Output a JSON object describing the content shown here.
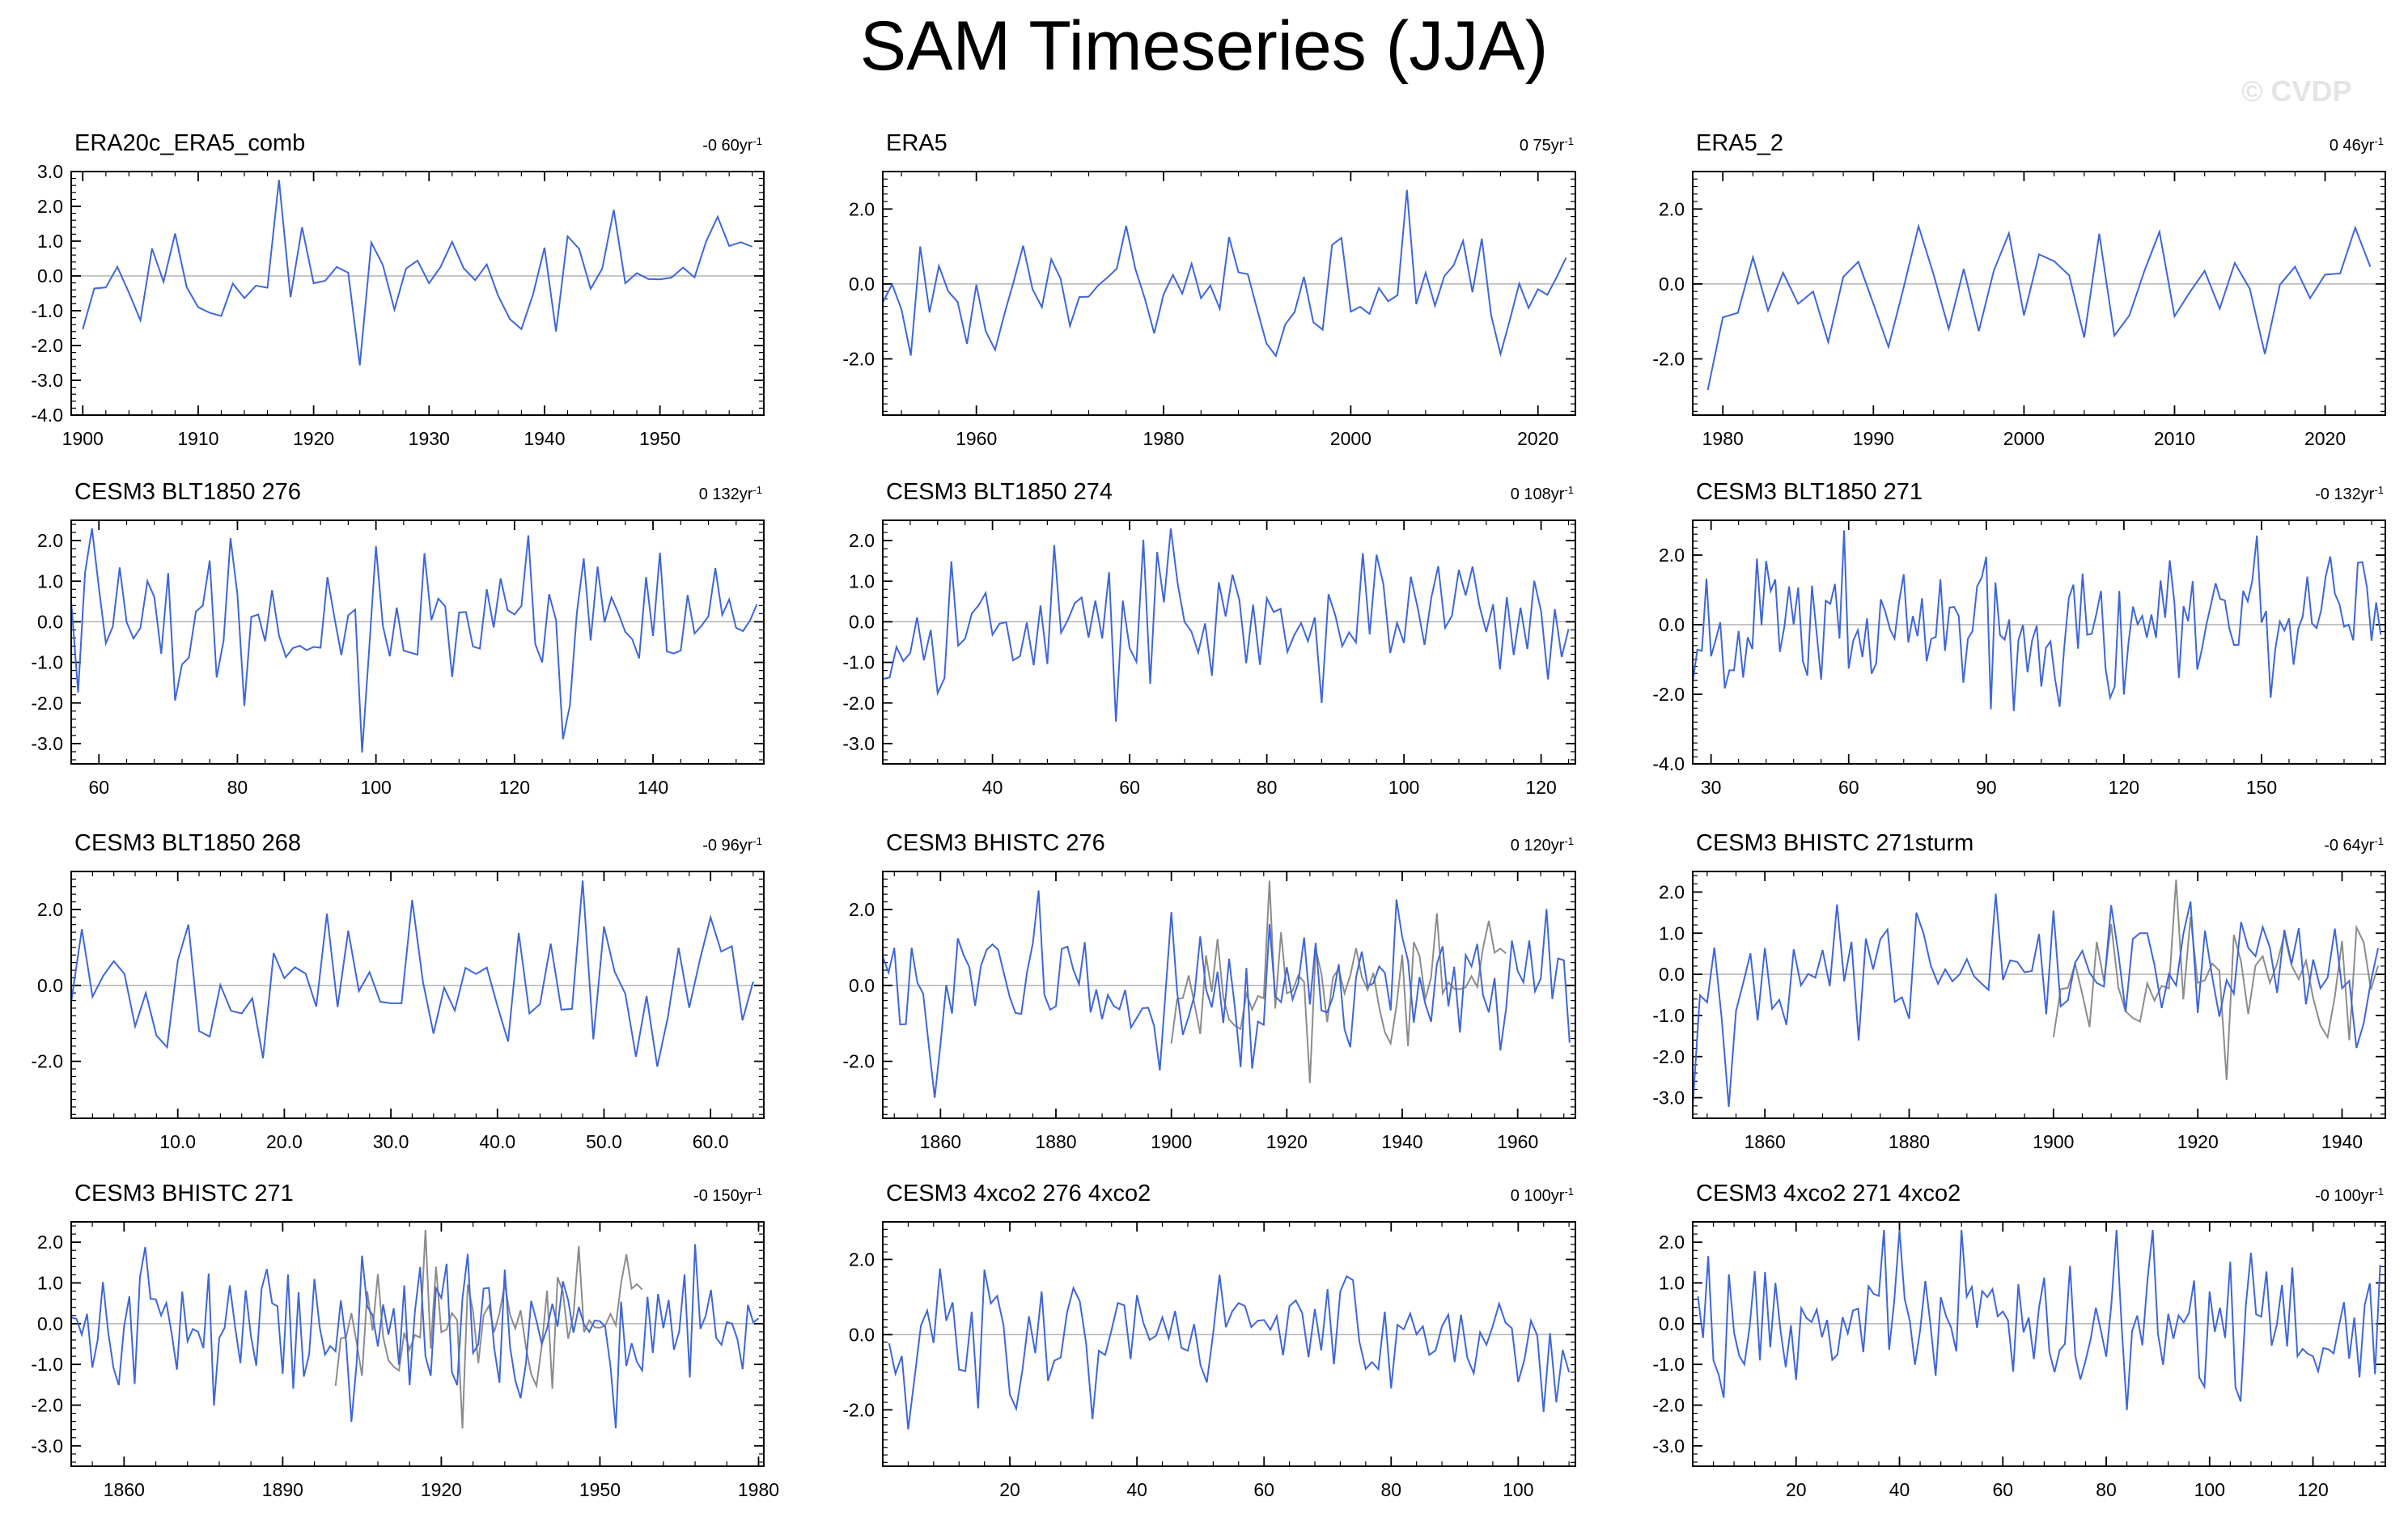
{
  "title": "SAM Timeseries (JJA)",
  "watermark": "© CVDP",
  "colors": {
    "series": "#3f66d9",
    "obs_overlay": "#8c8c8c",
    "zero_line": "#b4b4b4",
    "axis": "#000000"
  },
  "chart_data": [
    {
      "type": "line",
      "title": "ERA20c_ERA5_comb",
      "trend": "-0 60yr",
      "trend_unit": "-1",
      "xlim": [
        1899,
        1959
      ],
      "ylim": [
        -4,
        3
      ],
      "xticks": [
        1900,
        1910,
        1920,
        1930,
        1940,
        1950
      ],
      "xtick_labels": [
        "1900",
        "1910",
        "1920",
        "1930",
        "1940",
        "1950"
      ],
      "yticks": [
        3,
        2,
        1,
        0,
        -1,
        -2,
        -3,
        -4
      ],
      "ytick_labels": [
        "3.0",
        "2.0",
        "1.0",
        "0.0",
        "-1.0",
        "-2.0",
        "-3.0",
        "-4.0"
      ],
      "x_start": 1900,
      "x_step": 1,
      "n": 59,
      "seed": 11,
      "amp": 0.85,
      "overlay": false
    },
    {
      "type": "line",
      "title": "ERA5",
      "trend": "0 75yr",
      "trend_unit": "-1",
      "xlim": [
        1950,
        2024
      ],
      "ylim": [
        -3.5,
        3
      ],
      "xticks": [
        1960,
        1980,
        2000,
        2020
      ],
      "xtick_labels": [
        "1960",
        "1980",
        "2000",
        "2020"
      ],
      "yticks": [
        2,
        0,
        -2
      ],
      "ytick_labels": [
        "2.0",
        "0.0",
        "-2.0"
      ],
      "x_start": 1950,
      "x_step": 1,
      "n": 74,
      "seed": 23,
      "amp": 0.95,
      "overlay": false
    },
    {
      "type": "line",
      "title": "ERA5_2",
      "trend": "0 46yr",
      "trend_unit": "-1",
      "xlim": [
        1978,
        2024
      ],
      "ylim": [
        -3.5,
        3
      ],
      "xticks": [
        1980,
        1990,
        2000,
        2010,
        2020
      ],
      "xtick_labels": [
        "1980",
        "1990",
        "2000",
        "2010",
        "2020"
      ],
      "yticks": [
        2,
        0,
        -2
      ],
      "ytick_labels": [
        "2.0",
        "0.0",
        "-2.0"
      ],
      "x_start": 1979,
      "x_step": 1,
      "n": 45,
      "seed": 37,
      "amp": 0.95,
      "overlay": false
    },
    {
      "type": "line",
      "title": "CESM3 BLT1850 276",
      "trend": "0 132yr",
      "trend_unit": "-1",
      "xlim": [
        56,
        156
      ],
      "ylim": [
        -3.5,
        2.5
      ],
      "xticks": [
        60,
        80,
        100,
        120,
        140
      ],
      "xtick_labels": [
        "60",
        "80",
        "100",
        "120",
        "140"
      ],
      "yticks": [
        2,
        1,
        0,
        -1,
        -2,
        -3
      ],
      "ytick_labels": [
        "2.0",
        "1.0",
        "0.0",
        "-1.0",
        "-2.0",
        "-3.0"
      ],
      "x_start": 56,
      "x_step": 1,
      "n": 100,
      "seed": 41,
      "amp": 0.9,
      "overlay": false
    },
    {
      "type": "line",
      "title": "CESM3 BLT1850 274",
      "trend": "0 108yr",
      "trend_unit": "-1",
      "xlim": [
        24,
        125
      ],
      "ylim": [
        -3.5,
        2.5
      ],
      "xticks": [
        40,
        60,
        80,
        100,
        120
      ],
      "xtick_labels": [
        "40",
        "60",
        "80",
        "100",
        "120"
      ],
      "yticks": [
        2,
        1,
        0,
        -1,
        -2,
        -3
      ],
      "ytick_labels": [
        "2.0",
        "1.0",
        "0.0",
        "-1.0",
        "-2.0",
        "-3.0"
      ],
      "x_start": 24,
      "x_step": 1,
      "n": 101,
      "seed": 53,
      "amp": 0.9,
      "overlay": false
    },
    {
      "type": "line",
      "title": "CESM3 BLT1850 271",
      "trend": "-0 132yr",
      "trend_unit": "-1",
      "xlim": [
        26,
        177
      ],
      "ylim": [
        -4,
        3
      ],
      "xticks": [
        30,
        60,
        90,
        120,
        150
      ],
      "xtick_labels": [
        "30",
        "60",
        "90",
        "120",
        "150"
      ],
      "yticks": [
        2,
        0,
        -2,
        -4
      ],
      "ytick_labels": [
        "2.0",
        "0.0",
        "-2.0",
        "-4.0"
      ],
      "x_start": 26,
      "x_step": 1,
      "n": 151,
      "seed": 67,
      "amp": 0.95,
      "overlay": false
    },
    {
      "type": "line",
      "title": "CESM3 BLT1850 268",
      "trend": "-0 96yr",
      "trend_unit": "-1",
      "xlim": [
        0,
        65
      ],
      "ylim": [
        -3.5,
        3
      ],
      "xticks": [
        10,
        20,
        30,
        40,
        50,
        60
      ],
      "xtick_labels": [
        "10.0",
        "20.0",
        "30.0",
        "40.0",
        "50.0",
        "60.0"
      ],
      "yticks": [
        2,
        0,
        -2
      ],
      "ytick_labels": [
        "2.0",
        "0.0",
        "-2.0"
      ],
      "x_start": 0,
      "x_step": 1,
      "n": 65,
      "seed": 71,
      "amp": 0.9,
      "overlay": false
    },
    {
      "type": "line",
      "title": "CESM3 BHISTC 276",
      "trend": "0 120yr",
      "trend_unit": "-1",
      "xlim": [
        1850,
        1970
      ],
      "ylim": [
        -3.5,
        3
      ],
      "xticks": [
        1860,
        1880,
        1900,
        1920,
        1940,
        1960
      ],
      "xtick_labels": [
        "1860",
        "1880",
        "1900",
        "1920",
        "1940",
        "1960"
      ],
      "yticks": [
        2,
        0,
        -2
      ],
      "ytick_labels": [
        "2.0",
        "0.0",
        "-2.0"
      ],
      "x_start": 1850,
      "x_step": 1,
      "n": 120,
      "seed": 83,
      "amp": 0.95,
      "overlay": true,
      "overlay_start": 1900,
      "overlay_n": 59,
      "overlay_seed": 11
    },
    {
      "type": "line",
      "title": "CESM3 BHISTC 271sturm",
      "trend": "-0 64yr",
      "trend_unit": "-1",
      "xlim": [
        1850,
        1946
      ],
      "ylim": [
        -3.5,
        2.5
      ],
      "xticks": [
        1860,
        1880,
        1900,
        1920,
        1940
      ],
      "xtick_labels": [
        "1860",
        "1880",
        "1900",
        "1920",
        "1940"
      ],
      "yticks": [
        2,
        1,
        0,
        -1,
        -2,
        -3
      ],
      "ytick_labels": [
        "2.0",
        "1.0",
        "0.0",
        "-1.0",
        "-2.0",
        "-3.0"
      ],
      "x_start": 1850,
      "x_step": 1,
      "n": 96,
      "seed": 97,
      "amp": 0.9,
      "overlay": true,
      "overlay_start": 1900,
      "overlay_n": 46,
      "overlay_seed": 11
    },
    {
      "type": "line",
      "title": "CESM3 BHISTC 271",
      "trend": "-0 150yr",
      "trend_unit": "-1",
      "xlim": [
        1850,
        1981
      ],
      "ylim": [
        -3.5,
        2.5
      ],
      "xticks": [
        1860,
        1890,
        1920,
        1950,
        1980
      ],
      "xtick_labels": [
        "1860",
        "1890",
        "1920",
        "1950",
        "1980"
      ],
      "yticks": [
        2,
        1,
        0,
        -1,
        -2,
        -3
      ],
      "ytick_labels": [
        "2.0",
        "1.0",
        "0.0",
        "-1.0",
        "-2.0",
        "-3.0"
      ],
      "x_start": 1850,
      "x_step": 1,
      "n": 131,
      "seed": 101,
      "amp": 0.9,
      "overlay": true,
      "overlay_start": 1900,
      "overlay_n": 59,
      "overlay_seed": 11
    },
    {
      "type": "line",
      "title": "CESM3 4xco2 276 4xco2",
      "trend": "0 100yr",
      "trend_unit": "-1",
      "xlim": [
        0,
        109
      ],
      "ylim": [
        -3.5,
        3
      ],
      "xticks": [
        20,
        40,
        60,
        80,
        100
      ],
      "xtick_labels": [
        "20",
        "40",
        "60",
        "80",
        "100"
      ],
      "yticks": [
        2,
        0,
        -2
      ],
      "ytick_labels": [
        "2.0",
        "0.0",
        "-2.0"
      ],
      "x_start": 1,
      "x_step": 1,
      "n": 108,
      "seed": 113,
      "amp": 0.9,
      "overlay": false
    },
    {
      "type": "line",
      "title": "CESM3 4xco2 271 4xco2",
      "trend": "-0 100yr",
      "trend_unit": "-1",
      "xlim": [
        0,
        134
      ],
      "ylim": [
        -3.5,
        2.5
      ],
      "xticks": [
        20,
        40,
        60,
        80,
        100,
        120
      ],
      "xtick_labels": [
        "20",
        "40",
        "60",
        "80",
        "100",
        "120"
      ],
      "yticks": [
        2,
        1,
        0,
        -1,
        -2,
        -3
      ],
      "ytick_labels": [
        "2.0",
        "1.0",
        "0.0",
        "-1.0",
        "-2.0",
        "-3.0"
      ],
      "x_start": 1,
      "x_step": 1,
      "n": 133,
      "seed": 127,
      "amp": 0.9,
      "overlay": false
    }
  ]
}
